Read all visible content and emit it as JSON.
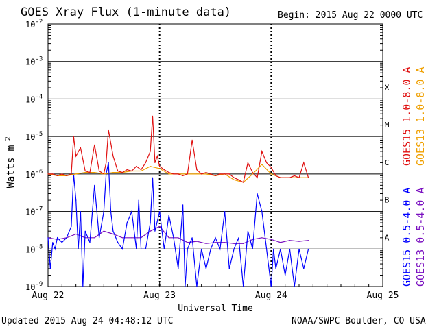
{
  "title": "GOES Xray Flux (1-minute data)",
  "begin_label": "Begin:  2015 Aug 22 0000 UTC",
  "updated_label": "Updated 2015 Aug 24 04:48:12 UTC",
  "credit_label": "NOAA/SWPC Boulder, CO USA",
  "ylabel_text": "Watts m",
  "ylabel_sup": "-2",
  "colors": {
    "goes15_long": "#e01010",
    "goes13_long": "#f0a000",
    "goes15_short": "#0000ff",
    "goes13_short": "#7a10c0"
  },
  "chart_data": {
    "type": "line",
    "xlabel": "Universal Time",
    "ylabel": "Watts m-2",
    "yscale": "log",
    "xlim": [
      0,
      72
    ],
    "ylim": [
      1e-09,
      0.01
    ],
    "x_ticks": [
      {
        "value": 0,
        "label": "Aug 22"
      },
      {
        "value": 24,
        "label": "Aug 23"
      },
      {
        "value": 48,
        "label": "Aug 24"
      },
      {
        "value": 72,
        "label": "Aug 25"
      }
    ],
    "y_ticks": [
      {
        "exp": -9,
        "label": "10"
      },
      {
        "exp": -8,
        "label": "10"
      },
      {
        "exp": -7,
        "label": "10"
      },
      {
        "exp": -6,
        "label": "10"
      },
      {
        "exp": -5,
        "label": "10"
      },
      {
        "exp": -4,
        "label": "10"
      },
      {
        "exp": -3,
        "label": "10"
      },
      {
        "exp": -2,
        "label": "10"
      }
    ],
    "flare_classes": [
      {
        "label": "A",
        "value": 1e-08
      },
      {
        "label": "B",
        "value": 1e-07
      },
      {
        "label": "C",
        "value": 1e-06
      },
      {
        "label": "M",
        "value": 1e-05
      },
      {
        "label": "X",
        "value": 0.0001
      }
    ],
    "day_dividers": [
      24,
      48
    ],
    "grid": true,
    "legend_position": "right, vertical",
    "series": [
      {
        "name": "GOES15 1.0-8.0 A",
        "color": "#e01010",
        "x": [
          0,
          1,
          2,
          3,
          4,
          5,
          5.5,
          6,
          7,
          8,
          9,
          10,
          11,
          12,
          12.5,
          13,
          14,
          15,
          16,
          17,
          18,
          19,
          20,
          21,
          22,
          22.5,
          23,
          23.5,
          24,
          25,
          26,
          27,
          28,
          29,
          30,
          31,
          32,
          33,
          34,
          35,
          36,
          37,
          38,
          39,
          40,
          41,
          42,
          43,
          44,
          45,
          46,
          47,
          48,
          49,
          50,
          51,
          52,
          53,
          54,
          55,
          56
        ],
        "y": [
          1e-06,
          1e-06,
          9e-07,
          1e-06,
          9e-07,
          1e-06,
          1e-05,
          3e-06,
          5e-06,
          1.2e-06,
          1.1e-06,
          6e-06,
          1.2e-06,
          1e-06,
          2e-06,
          1.5e-05,
          3e-06,
          1.2e-06,
          1.1e-06,
          1.3e-06,
          1.2e-06,
          1.6e-06,
          1.3e-06,
          2e-06,
          4e-06,
          3.5e-05,
          2e-06,
          3e-06,
          1.6e-06,
          1.3e-06,
          1.1e-06,
          1e-06,
          1e-06,
          9e-07,
          1e-06,
          8e-06,
          1.3e-06,
          1e-06,
          1.1e-06,
          1e-06,
          9e-07,
          1e-06,
          1e-06,
          1e-06,
          8e-07,
          7e-07,
          6e-07,
          2e-06,
          1.1e-06,
          8e-07,
          4e-06,
          2e-06,
          1.5e-06,
          9e-07,
          8e-07,
          8e-07,
          8e-07,
          9e-07,
          8e-07,
          2e-06,
          8e-07
        ]
      },
      {
        "name": "GOES13 1.0-8.0 A",
        "color": "#f0a000",
        "x": [
          0,
          2,
          4,
          6,
          8,
          10,
          12,
          14,
          16,
          18,
          20,
          22,
          24,
          26,
          28,
          30,
          32,
          34,
          36,
          38,
          40,
          42,
          44,
          46,
          48,
          50,
          52,
          54,
          56
        ],
        "y": [
          1e-06,
          9e-07,
          9e-07,
          1e-06,
          1.1e-06,
          1.1e-06,
          1e-06,
          1.1e-06,
          1.1e-06,
          1.2e-06,
          1.2e-06,
          1.6e-06,
          1.4e-06,
          1e-06,
          1e-06,
          1e-06,
          1e-06,
          1e-06,
          9e-07,
          1e-06,
          7e-07,
          6e-07,
          1e-06,
          1.8e-06,
          1e-06,
          8e-07,
          8e-07,
          8e-07,
          8e-07
        ]
      },
      {
        "name": "GOES15 0.5-4.0 A",
        "color": "#0000ff",
        "x": [
          0,
          0.5,
          1,
          1.5,
          2,
          3,
          4,
          5,
          5.5,
          6,
          6.5,
          7,
          7.5,
          8,
          9,
          10,
          11,
          12,
          12.5,
          13,
          13.5,
          14,
          15,
          16,
          17,
          18,
          19,
          19.5,
          20,
          21,
          22,
          22.5,
          23,
          24,
          24.5,
          25,
          26,
          27,
          28,
          29,
          29.5,
          30,
          31,
          32,
          33,
          34,
          35,
          36,
          37,
          38,
          39,
          40,
          41,
          42,
          43,
          44,
          45,
          46,
          47,
          48,
          48.5,
          49,
          50,
          51,
          52,
          53,
          54,
          55,
          56
        ],
        "y": [
          2e-08,
          3e-09,
          1.5e-08,
          1e-08,
          2e-08,
          1.5e-08,
          2e-08,
          4e-08,
          1e-06,
          2e-07,
          1e-08,
          1e-07,
          1e-09,
          3e-08,
          1.5e-08,
          5e-07,
          2e-08,
          1e-07,
          1e-06,
          2e-06,
          1e-07,
          3e-08,
          1.5e-08,
          1e-08,
          5e-08,
          1e-07,
          1e-08,
          2e-07,
          1e-08,
          1e-08,
          5e-08,
          8e-07,
          3e-08,
          1e-07,
          3e-08,
          1e-08,
          8e-08,
          2e-08,
          3e-09,
          1.5e-07,
          1e-09,
          1e-08,
          2e-08,
          1e-09,
          1e-08,
          3e-09,
          1e-08,
          2e-08,
          1e-08,
          1e-07,
          3e-09,
          1e-08,
          2e-08,
          1e-09,
          3e-08,
          1e-08,
          3e-07,
          1e-07,
          1e-08,
          1e-09,
          1e-08,
          3e-09,
          1e-08,
          2e-09,
          1e-08,
          1e-09,
          1e-08,
          3e-09,
          1e-08
        ]
      },
      {
        "name": "GOES13 0.5-4.0 A",
        "color": "#7a10c0",
        "x": [
          0,
          2,
          4,
          6,
          8,
          10,
          12,
          14,
          16,
          18,
          20,
          22,
          24,
          26,
          28,
          30,
          32,
          34,
          36,
          38,
          40,
          42,
          44,
          46,
          48,
          50,
          52,
          54,
          56
        ],
        "y": [
          2e-08,
          1.8e-08,
          2e-08,
          2.5e-08,
          2e-08,
          2e-08,
          3e-08,
          2.5e-08,
          2e-08,
          2e-08,
          2e-08,
          3e-08,
          4e-08,
          2e-08,
          2e-08,
          1.5e-08,
          1.6e-08,
          1.4e-08,
          1.5e-08,
          1.5e-08,
          1.4e-08,
          1.4e-08,
          1.8e-08,
          2e-08,
          1.8e-08,
          1.5e-08,
          1.7e-08,
          1.6e-08,
          1.7e-08
        ]
      }
    ]
  }
}
